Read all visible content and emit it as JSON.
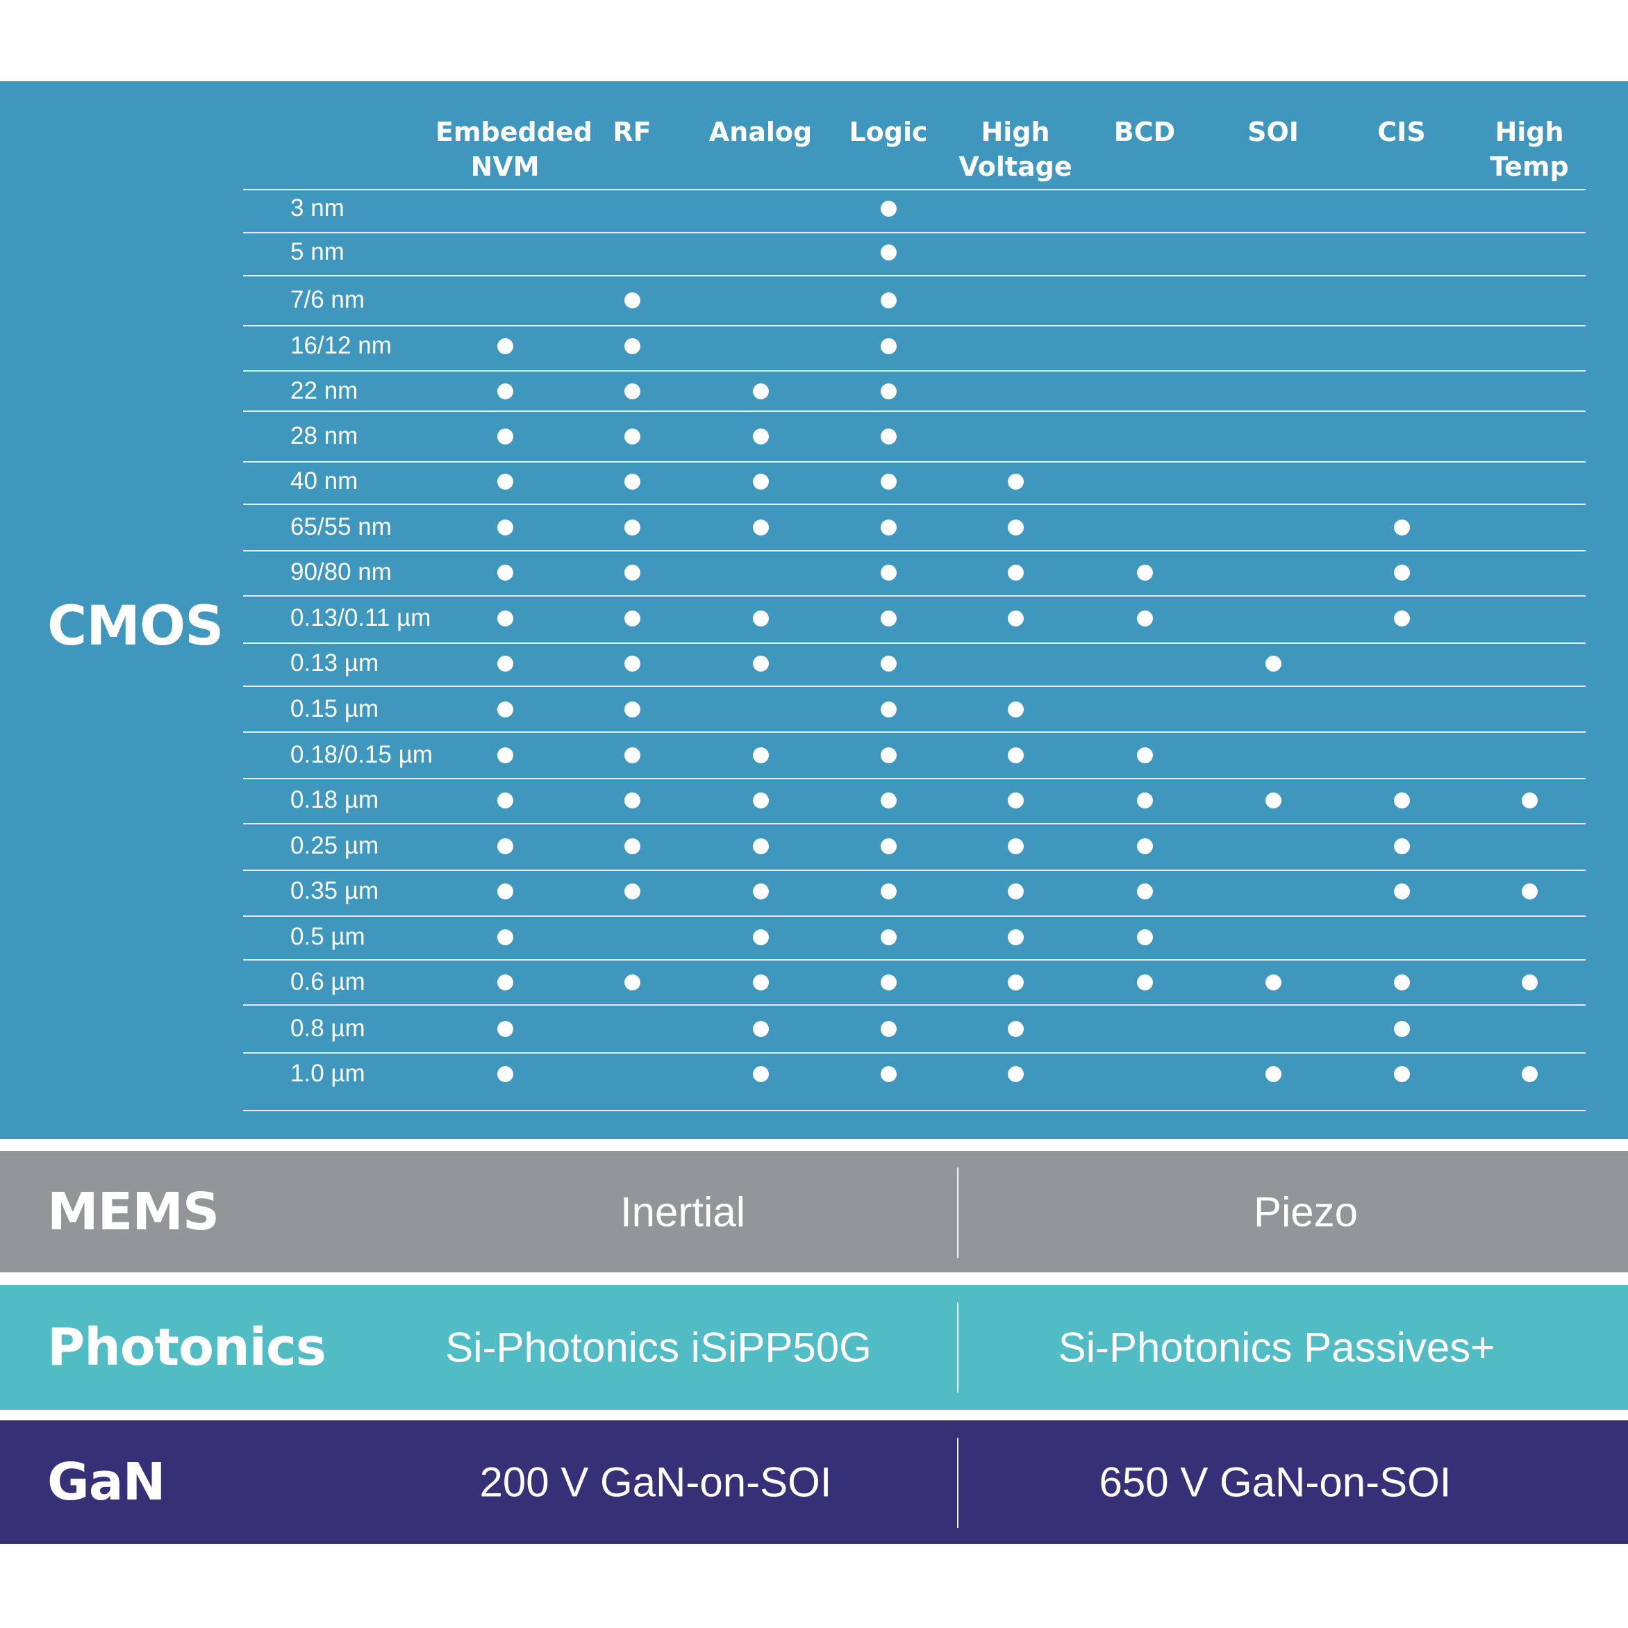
{
  "cmos": {
    "label": "CMOS",
    "columns": [
      "Embedded\nNVM",
      "RF",
      "Analog",
      "Logic",
      "High\nVoltage",
      "BCD",
      "SOI",
      "CIS",
      "High\nTemp"
    ],
    "rows": [
      {
        "node": "3 nm",
        "marks": [
          0,
          0,
          0,
          1,
          0,
          0,
          0,
          0,
          0
        ]
      },
      {
        "node": "5 nm",
        "marks": [
          0,
          0,
          0,
          1,
          0,
          0,
          0,
          0,
          0
        ]
      },
      {
        "node": "7/6 nm",
        "marks": [
          0,
          1,
          0,
          1,
          0,
          0,
          0,
          0,
          0
        ]
      },
      {
        "node": "16/12 nm",
        "marks": [
          1,
          1,
          0,
          1,
          0,
          0,
          0,
          0,
          0
        ]
      },
      {
        "node": "22 nm",
        "marks": [
          1,
          1,
          1,
          1,
          0,
          0,
          0,
          0,
          0
        ]
      },
      {
        "node": "28 nm",
        "marks": [
          1,
          1,
          1,
          1,
          0,
          0,
          0,
          0,
          0
        ]
      },
      {
        "node": "40 nm",
        "marks": [
          1,
          1,
          1,
          1,
          1,
          0,
          0,
          0,
          0
        ]
      },
      {
        "node": "65/55 nm",
        "marks": [
          1,
          1,
          1,
          1,
          1,
          0,
          0,
          1,
          0
        ]
      },
      {
        "node": "90/80 nm",
        "marks": [
          1,
          1,
          0,
          1,
          1,
          1,
          0,
          1,
          0
        ]
      },
      {
        "node": "0.13/0.11 µm",
        "marks": [
          1,
          1,
          1,
          1,
          1,
          1,
          0,
          1,
          0
        ]
      },
      {
        "node": "0.13 µm",
        "marks": [
          1,
          1,
          1,
          1,
          0,
          0,
          1,
          0,
          0
        ]
      },
      {
        "node": "0.15 µm",
        "marks": [
          1,
          1,
          0,
          1,
          1,
          0,
          0,
          0,
          0
        ]
      },
      {
        "node": "0.18/0.15 µm",
        "marks": [
          1,
          1,
          1,
          1,
          1,
          1,
          0,
          0,
          0
        ]
      },
      {
        "node": "0.18 µm",
        "marks": [
          1,
          1,
          1,
          1,
          1,
          1,
          1,
          1,
          1
        ]
      },
      {
        "node": "0.25 µm",
        "marks": [
          1,
          1,
          1,
          1,
          1,
          1,
          0,
          1,
          0
        ]
      },
      {
        "node": "0.35 µm",
        "marks": [
          1,
          1,
          1,
          1,
          1,
          1,
          0,
          1,
          1
        ]
      },
      {
        "node": "0.5 µm",
        "marks": [
          1,
          0,
          1,
          1,
          1,
          1,
          0,
          0,
          0
        ]
      },
      {
        "node": "0.6 µm",
        "marks": [
          1,
          1,
          1,
          1,
          1,
          1,
          1,
          1,
          1
        ]
      },
      {
        "node": "0.8 µm",
        "marks": [
          1,
          0,
          1,
          1,
          1,
          0,
          0,
          1,
          0
        ]
      },
      {
        "node": "1.0 µm",
        "marks": [
          1,
          0,
          1,
          1,
          1,
          0,
          1,
          1,
          1
        ]
      }
    ]
  },
  "mems": {
    "label": "MEMS",
    "items": [
      "Inertial",
      "Piezo"
    ]
  },
  "photonics": {
    "label": "Photonics",
    "items": [
      "Si-Photonics iSiPP50G",
      "Si-Photonics Passives+"
    ]
  },
  "gan": {
    "label": "GaN",
    "items": [
      "200 V GaN-on-SOI",
      "650 V GaN-on-SOI"
    ]
  },
  "colors": {
    "cmos": "#4097bd",
    "mems": "#939598",
    "photonics": "#51bcc3",
    "gan": "#363176",
    "text": "#ffffff"
  }
}
